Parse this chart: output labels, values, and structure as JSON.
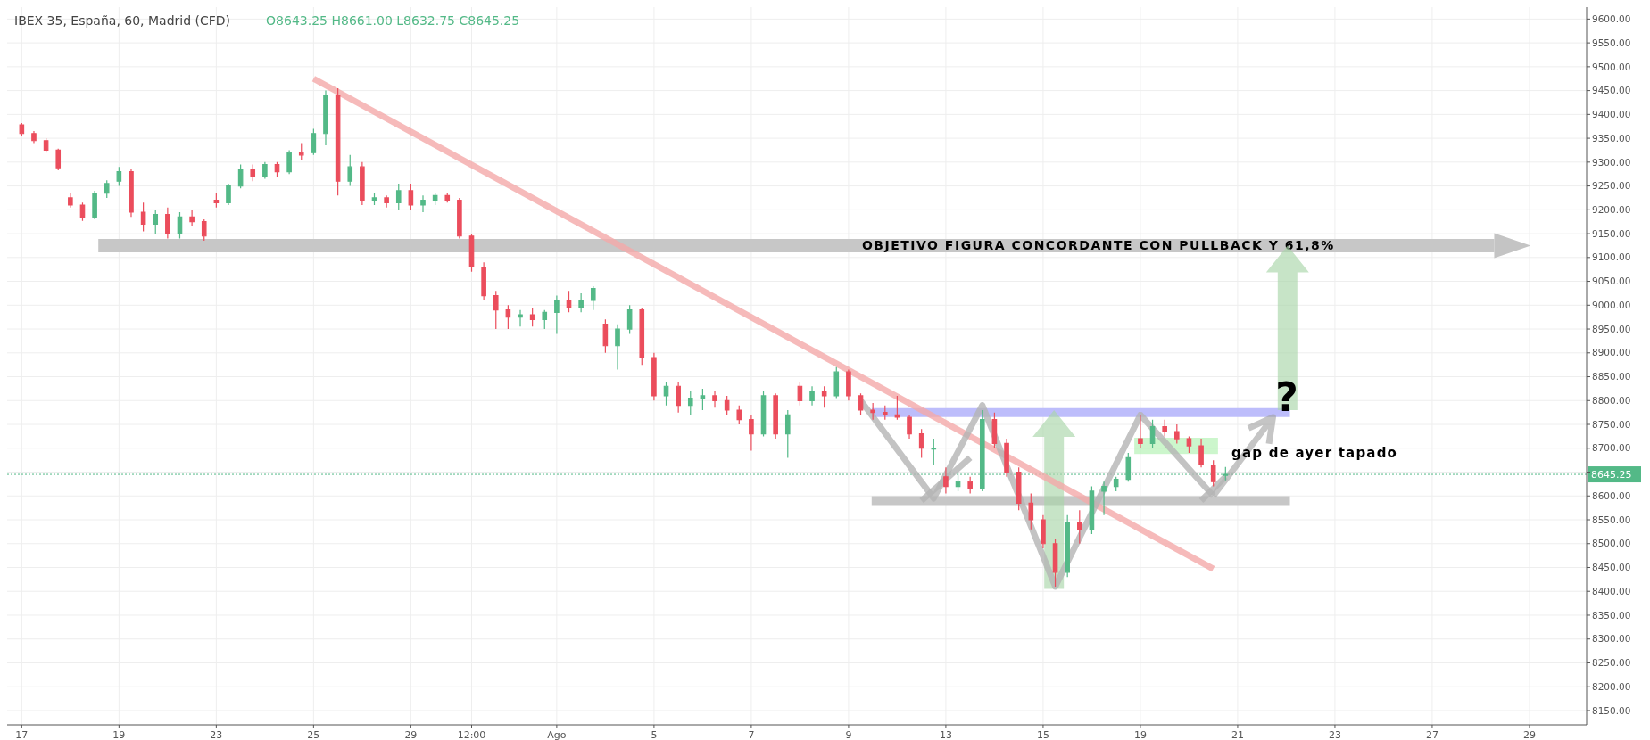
{
  "chart_data": {
    "type": "candlestick",
    "title": "IBEX 35, España, 60, Madrid (CFD)",
    "annotations": [
      "O8643.25 H8661.00 L8632.75 C8645.25",
      "gap de ayer tapado",
      "?"
    ],
    "categories": [
      "17",
      null,
      null,
      null,
      null,
      null,
      null,
      null,
      "19",
      null,
      null,
      null,
      null,
      null,
      null,
      null,
      "23",
      null,
      null,
      null,
      null,
      null,
      null,
      null,
      "25",
      null,
      null,
      null,
      null,
      null,
      null,
      null,
      "29",
      null,
      null,
      null,
      null,
      "12:00",
      null,
      null,
      null,
      null,
      null,
      null,
      "Ago",
      null,
      null,
      null,
      null,
      null,
      null,
      null,
      "5",
      null,
      null,
      null,
      null,
      null,
      null,
      null,
      "7",
      null,
      null,
      null,
      null,
      null,
      null,
      null,
      "9",
      null,
      null,
      null,
      null,
      null,
      null,
      null,
      "13",
      null,
      null,
      null,
      null,
      null,
      null,
      null,
      "15",
      null,
      null,
      null,
      null,
      null,
      null,
      null,
      "19",
      null,
      null,
      null,
      null,
      null,
      null,
      null,
      "21",
      null,
      null,
      null,
      null,
      null,
      null,
      null,
      "23",
      null,
      null,
      null,
      null,
      null,
      null,
      null,
      "27",
      null,
      null,
      null,
      null,
      null,
      null,
      null,
      "29",
      null,
      null,
      null,
      null,
      null
    ],
    "ohlc": [
      [
        9378,
        9382,
        9355,
        9360
      ],
      [
        9360,
        9365,
        9340,
        9345
      ],
      [
        9345,
        9350,
        9320,
        9325
      ],
      [
        9325,
        9328,
        9283,
        9288
      ],
      [
        9225,
        9235,
        9205,
        9210
      ],
      [
        9210,
        9215,
        9177,
        9185
      ],
      [
        9185,
        9240,
        9180,
        9235
      ],
      [
        9235,
        9262,
        9225,
        9255
      ],
      [
        9260,
        9290,
        9250,
        9280
      ],
      [
        9280,
        9285,
        9185,
        9195
      ],
      [
        9195,
        9215,
        9155,
        9170
      ],
      [
        9170,
        9200,
        9150,
        9190
      ],
      [
        9190,
        9205,
        9140,
        9150
      ],
      [
        9150,
        9195,
        9140,
        9185
      ],
      [
        9185,
        9200,
        9165,
        9175
      ],
      [
        9175,
        9180,
        9135,
        9145
      ],
      [
        9220,
        9235,
        9205,
        9215
      ],
      [
        9215,
        9255,
        9210,
        9250
      ],
      [
        9250,
        9295,
        9245,
        9285
      ],
      [
        9285,
        9295,
        9260,
        9270
      ],
      [
        9270,
        9300,
        9265,
        9295
      ],
      [
        9295,
        9300,
        9270,
        9280
      ],
      [
        9280,
        9325,
        9275,
        9320
      ],
      [
        9320,
        9340,
        9305,
        9315
      ],
      [
        9320,
        9370,
        9315,
        9360
      ],
      [
        9360,
        9450,
        9335,
        9440
      ],
      [
        9440,
        9455,
        9230,
        9260
      ],
      [
        9260,
        9315,
        9250,
        9290
      ],
      [
        9290,
        9300,
        9210,
        9220
      ],
      [
        9220,
        9235,
        9210,
        9225
      ],
      [
        9225,
        9230,
        9205,
        9215
      ],
      [
        9215,
        9255,
        9200,
        9240
      ],
      [
        9240,
        9255,
        9200,
        9210
      ],
      [
        9210,
        9230,
        9195,
        9220
      ],
      [
        9220,
        9235,
        9210,
        9230
      ],
      [
        9230,
        9235,
        9215,
        9220
      ],
      [
        9220,
        9225,
        9140,
        9145
      ],
      [
        9145,
        9150,
        9070,
        9080
      ],
      [
        9080,
        9090,
        9010,
        9020
      ],
      [
        9020,
        9030,
        8950,
        8990
      ],
      [
        8990,
        9000,
        8950,
        8975
      ],
      [
        8975,
        8990,
        8955,
        8980
      ],
      [
        8980,
        8995,
        8955,
        8970
      ],
      [
        8970,
        8990,
        8950,
        8985
      ],
      [
        8985,
        9020,
        8940,
        9010
      ],
      [
        9010,
        9030,
        8985,
        8995
      ],
      [
        8995,
        9025,
        8985,
        9010
      ],
      [
        9010,
        9040,
        8990,
        9035
      ],
      [
        8960,
        8970,
        8900,
        8915
      ],
      [
        8915,
        8960,
        8865,
        8950
      ],
      [
        8950,
        9000,
        8940,
        8990
      ],
      [
        8990,
        8995,
        8875,
        8890
      ],
      [
        8890,
        8900,
        8800,
        8810
      ],
      [
        8810,
        8840,
        8790,
        8830
      ],
      [
        8830,
        8840,
        8775,
        8790
      ],
      [
        8790,
        8820,
        8770,
        8805
      ],
      [
        8805,
        8825,
        8780,
        8810
      ],
      [
        8810,
        8820,
        8785,
        8800
      ],
      [
        8800,
        8810,
        8770,
        8780
      ],
      [
        8780,
        8790,
        8750,
        8760
      ],
      [
        8760,
        8770,
        8695,
        8730
      ],
      [
        8730,
        8820,
        8725,
        8810
      ],
      [
        8810,
        8815,
        8720,
        8730
      ],
      [
        8730,
        8780,
        8680,
        8770
      ],
      [
        8830,
        8840,
        8790,
        8800
      ],
      [
        8800,
        8830,
        8790,
        8820
      ],
      [
        8820,
        8830,
        8785,
        8810
      ],
      [
        8810,
        8870,
        8805,
        8860
      ],
      [
        8860,
        8865,
        8800,
        8810
      ],
      [
        8810,
        8815,
        8770,
        8780
      ],
      [
        8780,
        8795,
        8760,
        8775
      ],
      [
        8775,
        8790,
        8760,
        8770
      ],
      [
        8770,
        8810,
        8760,
        8765
      ],
      [
        8765,
        8770,
        8720,
        8730
      ],
      [
        8730,
        8740,
        8680,
        8700
      ],
      [
        8700,
        8720,
        8665,
        8700
      ],
      [
        8640,
        8660,
        8605,
        8620
      ],
      [
        8620,
        8650,
        8610,
        8630
      ],
      [
        8630,
        8640,
        8605,
        8615
      ],
      [
        8615,
        8780,
        8610,
        8760
      ],
      [
        8760,
        8775,
        8700,
        8710
      ],
      [
        8710,
        8720,
        8640,
        8650
      ],
      [
        8650,
        8660,
        8570,
        8585
      ],
      [
        8585,
        8605,
        8530,
        8550
      ],
      [
        8550,
        8560,
        8490,
        8500
      ],
      [
        8500,
        8510,
        8410,
        8440
      ],
      [
        8440,
        8560,
        8430,
        8545
      ],
      [
        8545,
        8570,
        8500,
        8530
      ],
      [
        8530,
        8620,
        8520,
        8610
      ],
      [
        8610,
        8630,
        8560,
        8620
      ],
      [
        8620,
        8640,
        8610,
        8635
      ],
      [
        8635,
        8690,
        8630,
        8680
      ],
      [
        8720,
        8770,
        8700,
        8710
      ],
      [
        8710,
        8760,
        8700,
        8745
      ],
      [
        8745,
        8760,
        8725,
        8735
      ],
      [
        8735,
        8750,
        8710,
        8720
      ],
      [
        8720,
        8725,
        8690,
        8705
      ],
      [
        8705,
        8720,
        8660,
        8665
      ],
      [
        8665,
        8675,
        8620,
        8630
      ],
      [
        8643.25,
        8661,
        8632.75,
        8645.25
      ],
      null,
      null,
      null,
      null,
      null,
      null,
      null,
      null,
      null,
      null,
      null,
      null,
      null,
      null,
      null,
      null,
      null,
      null,
      null,
      null,
      null,
      null,
      null,
      null,
      null,
      null,
      null,
      null,
      null,
      null
    ],
    "series": [
      {
        "type": "line",
        "color": "#f4a9a9",
        "values": [
          null,
          null,
          null,
          null,
          null,
          null,
          null,
          null,
          null,
          null,
          null,
          null,
          null,
          null,
          null,
          null,
          null,
          null,
          null,
          null,
          null,
          null,
          null,
          null,
          9475,
          null,
          null,
          null,
          null,
          null,
          null,
          null,
          null,
          null,
          null,
          null,
          null,
          null,
          null,
          null,
          null,
          null,
          null,
          null,
          null,
          null,
          null,
          null,
          null,
          null,
          null,
          null,
          null,
          null,
          null,
          null,
          null,
          null,
          null,
          null,
          null,
          null,
          null,
          null,
          null,
          null,
          null,
          null,
          null,
          null,
          null,
          null,
          null,
          null,
          null,
          null,
          null,
          null,
          null,
          null,
          null,
          null,
          null,
          null,
          null,
          null,
          null,
          null,
          null,
          null,
          null,
          null,
          null,
          null,
          null,
          null,
          null,
          null,
          8447,
          null,
          null,
          null,
          null,
          null,
          null,
          null,
          null,
          null,
          null,
          null,
          null,
          null,
          null,
          null,
          null,
          null,
          null,
          null,
          null,
          null,
          null,
          null,
          null,
          null,
          null,
          null,
          null,
          null,
          null,
          null
        ]
      },
      {
        "type": "line",
        "color": "#b4b4b4",
        "values": [
          null,
          null,
          null,
          null,
          null,
          null,
          null,
          null,
          null,
          null,
          null,
          null,
          null,
          null,
          null,
          null,
          null,
          null,
          null,
          null,
          null,
          null,
          null,
          null,
          null,
          null,
          null,
          null,
          null,
          null,
          null,
          null,
          null,
          null,
          null,
          null,
          null,
          null,
          null,
          null,
          null,
          null,
          null,
          null,
          null,
          null,
          null,
          null,
          null,
          null,
          null,
          null,
          null,
          null,
          null,
          null,
          null,
          null,
          null,
          null,
          null,
          null,
          null,
          null,
          null,
          null,
          null,
          null,
          null,
          8800,
          null,
          null,
          null,
          null,
          null,
          8595,
          null,
          null,
          null,
          8790,
          null,
          null,
          null,
          null,
          null,
          8410,
          null,
          null,
          null,
          null,
          null,
          null,
          8770,
          null,
          null,
          null,
          null,
          null,
          8600,
          null,
          null,
          null,
          null,
          null,
          null,
          null,
          null,
          null,
          null,
          null,
          null,
          null,
          null,
          null,
          null,
          null,
          null,
          null,
          null,
          null,
          null,
          null,
          null,
          null,
          null,
          null,
          null,
          null,
          null,
          null
        ]
      },
      {
        "type": "line",
        "color": "#b4b4b4",
        "values": [
          null,
          null,
          null,
          null,
          null,
          null,
          null,
          null,
          null,
          null,
          null,
          null,
          null,
          null,
          null,
          null,
          null,
          null,
          null,
          null,
          null,
          null,
          null,
          null,
          null,
          null,
          null,
          null,
          null,
          null,
          null,
          null,
          null,
          null,
          null,
          null,
          null,
          null,
          null,
          null,
          null,
          null,
          null,
          null,
          null,
          null,
          null,
          null,
          null,
          null,
          null,
          null,
          null,
          null,
          null,
          null,
          null,
          null,
          null,
          null,
          null,
          null,
          null,
          null,
          null,
          null,
          null,
          null,
          null,
          null,
          null,
          null,
          null,
          null,
          8590,
          null,
          null,
          null,
          8680,
          null,
          null,
          null,
          null,
          null,
          null,
          null,
          null,
          null,
          null,
          null,
          null,
          null,
          null,
          null,
          null,
          null,
          null,
          null,
          null,
          null,
          null,
          null,
          null,
          null,
          null,
          null,
          null,
          null,
          null,
          null,
          null,
          null,
          null,
          null,
          null,
          null,
          null,
          null,
          null,
          null,
          null,
          null,
          null,
          null,
          null,
          null,
          null,
          null,
          null,
          null
        ]
      },
      {
        "type": "line",
        "color": "#b4b4b4",
        "values": [
          null,
          null,
          null,
          null,
          null,
          null,
          null,
          null,
          null,
          null,
          null,
          null,
          null,
          null,
          null,
          null,
          null,
          null,
          null,
          null,
          null,
          null,
          null,
          null,
          null,
          null,
          null,
          null,
          null,
          null,
          null,
          null,
          null,
          null,
          null,
          null,
          null,
          null,
          null,
          null,
          null,
          null,
          null,
          null,
          null,
          null,
          null,
          null,
          null,
          null,
          null,
          null,
          null,
          null,
          null,
          null,
          null,
          null,
          null,
          null,
          null,
          null,
          null,
          null,
          null,
          null,
          null,
          null,
          null,
          null,
          null,
          null,
          null,
          null,
          null,
          null,
          null,
          null,
          null,
          null,
          null,
          null,
          null,
          null,
          null,
          null,
          null,
          null,
          null,
          null,
          null,
          null,
          null,
          null,
          null,
          null,
          null,
          8590,
          null,
          8640,
          null,
          null,
          null,
          null,
          null,
          null,
          null,
          null,
          null,
          null,
          null,
          null,
          null,
          null,
          null,
          null,
          null,
          null,
          null,
          null,
          null,
          null,
          null,
          null,
          null,
          null,
          null,
          null,
          null,
          null
        ]
      }
    ],
    "ref_lines": [
      {
        "axis": "y",
        "value": 9125,
        "label": "OBJETIVO FIGURA CONCORDANTE CON PULLBACK Y 61,8%",
        "color": "#c4c4c4"
      },
      {
        "axis": "y",
        "value": 8775,
        "color": "#b9b9fb"
      },
      {
        "axis": "y",
        "value": 8590,
        "color": "#c4c4c4"
      },
      {
        "axis": "y",
        "value": 8645.25,
        "label": "8645.25",
        "color": "#53b987",
        "line_style": "dotted"
      }
    ],
    "ylim": [
      8120,
      9625
    ],
    "yticks": [
      {
        "value": 8150,
        "label": "8150.00"
      },
      {
        "value": 8200,
        "label": "8200.00"
      },
      {
        "value": 8250,
        "label": "8250.00"
      },
      {
        "value": 8300,
        "label": "8300.00"
      },
      {
        "value": 8350,
        "label": "8350.00"
      },
      {
        "value": 8400,
        "label": "8400.00"
      },
      {
        "value": 8450,
        "label": "8450.00"
      },
      {
        "value": 8500,
        "label": "8500.00"
      },
      {
        "value": 8550,
        "label": "8550.00"
      },
      {
        "value": 8600,
        "label": "8600.00"
      },
      {
        "value": 8650,
        "label": null
      },
      {
        "value": 8700,
        "label": "8700.00"
      },
      {
        "value": 8750,
        "label": "8750.00"
      },
      {
        "value": 8800,
        "label": "8800.00"
      },
      {
        "value": 8850,
        "label": "8850.00"
      },
      {
        "value": 8900,
        "label": "8900.00"
      },
      {
        "value": 8950,
        "label": "8950.00"
      },
      {
        "value": 9000,
        "label": "9000.00"
      },
      {
        "value": 9050,
        "label": "9050.00"
      },
      {
        "value": 9100,
        "label": "9100.00"
      },
      {
        "value": 9150,
        "label": "9150.00"
      },
      {
        "value": 9200,
        "label": "9200.00"
      },
      {
        "value": 9250,
        "label": "9250.00"
      },
      {
        "value": 9300,
        "label": "9300.00"
      },
      {
        "value": 9350,
        "label": "9350.00"
      },
      {
        "value": 9400,
        "label": "9400.00"
      },
      {
        "value": 9450,
        "label": "9450.00"
      },
      {
        "value": 9500,
        "label": "9500.00"
      },
      {
        "value": 9550,
        "label": "9550.00"
      },
      {
        "value": 9600,
        "label": "9600.00"
      }
    ],
    "grid": true
  }
}
